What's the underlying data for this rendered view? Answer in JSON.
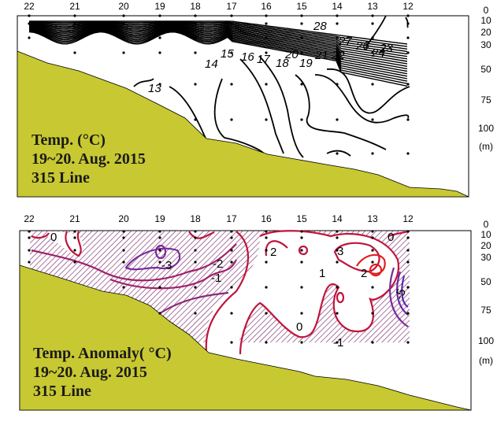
{
  "stations": [
    "22",
    "21",
    "20",
    "19",
    "18",
    "17",
    "16",
    "15",
    "14",
    "13",
    "12"
  ],
  "depth_labels": [
    "0",
    "10",
    "20",
    "30",
    "50",
    "75",
    "100"
  ],
  "depth_unit": "(m)",
  "colors": {
    "seafloor": "#c8c832",
    "hatch": "#7a2a6a",
    "positive": "#c0143c",
    "negative": "#7a2a9a"
  },
  "temp_panel": {
    "title_lines": [
      "Temp. (°C)",
      "19~20. Aug. 2015",
      "315 Line"
    ],
    "contour_labels": [
      "28",
      "27",
      "26",
      "24",
      "23",
      "22",
      "21",
      "20",
      "19",
      "18",
      "17",
      "16",
      "15",
      "14",
      "13"
    ]
  },
  "anomaly_panel": {
    "title_lines": [
      "Temp. Anomaly( °C)",
      "19~20. Aug. 2015",
      "315 Line"
    ],
    "contour_labels": [
      "0",
      "-3",
      "-2",
      "-1",
      "2",
      "1",
      "3",
      "2",
      "0",
      "0",
      "-1",
      "-5"
    ]
  }
}
